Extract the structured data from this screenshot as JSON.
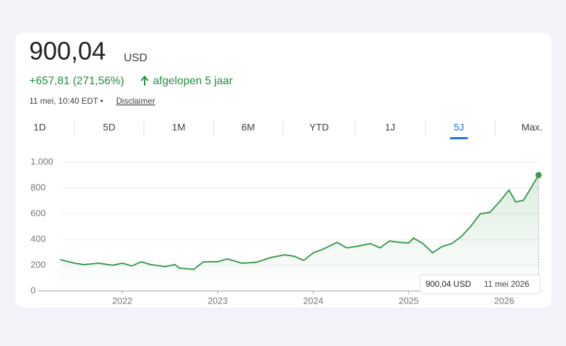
{
  "header": {
    "price": "900,04",
    "currency": "USD",
    "change": "+657,81 (271,56%)",
    "period": "afgelopen 5 jaar",
    "timestamp": "11 mei, 10:40 EDT •",
    "disclaimer": "Disclaimer"
  },
  "tabs": [
    "1D",
    "5D",
    "1M",
    "6M",
    "YTD",
    "1J",
    "5J",
    "Max."
  ],
  "selected_tab": "5J",
  "chart_data": {
    "type": "line",
    "color": "#3c9a4f",
    "x": [
      2021.35,
      2021.5,
      2021.6,
      2021.75,
      2021.9,
      2022.0,
      2022.1,
      2022.2,
      2022.3,
      2022.45,
      2022.55,
      2022.6,
      2022.75,
      2022.85,
      2023.0,
      2023.1,
      2023.25,
      2023.4,
      2023.55,
      2023.7,
      2023.8,
      2023.9,
      2024.0,
      2024.1,
      2024.25,
      2024.35,
      2024.45,
      2024.6,
      2024.7,
      2024.8,
      2024.9,
      2025.0,
      2025.05,
      2025.15,
      2025.25,
      2025.35,
      2025.45,
      2025.55,
      2025.65,
      2025.75,
      2025.85,
      2025.95,
      2026.05,
      2026.12,
      2026.2,
      2026.28,
      2026.36
    ],
    "values": [
      243,
      216,
      205,
      216,
      200,
      216,
      195,
      227,
      205,
      189,
      205,
      178,
      168,
      227,
      227,
      249,
      216,
      222,
      259,
      281,
      270,
      238,
      297,
      324,
      378,
      335,
      346,
      368,
      335,
      389,
      378,
      373,
      411,
      368,
      297,
      346,
      368,
      422,
      503,
      600,
      611,
      692,
      784,
      692,
      703,
      800,
      900.04
    ],
    "xlim": [
      2021.12,
      2026.385
    ],
    "xticks": [
      2022,
      2023,
      2024,
      2025,
      2026
    ],
    "ylim": [
      0,
      1000
    ],
    "yticks": [
      0,
      200,
      400,
      600,
      800,
      {
        "value": 1000,
        "label": "1.000"
      }
    ],
    "grid": true,
    "tooltip_value": "900,04 USD",
    "tooltip_date": "11 mei 2026"
  }
}
